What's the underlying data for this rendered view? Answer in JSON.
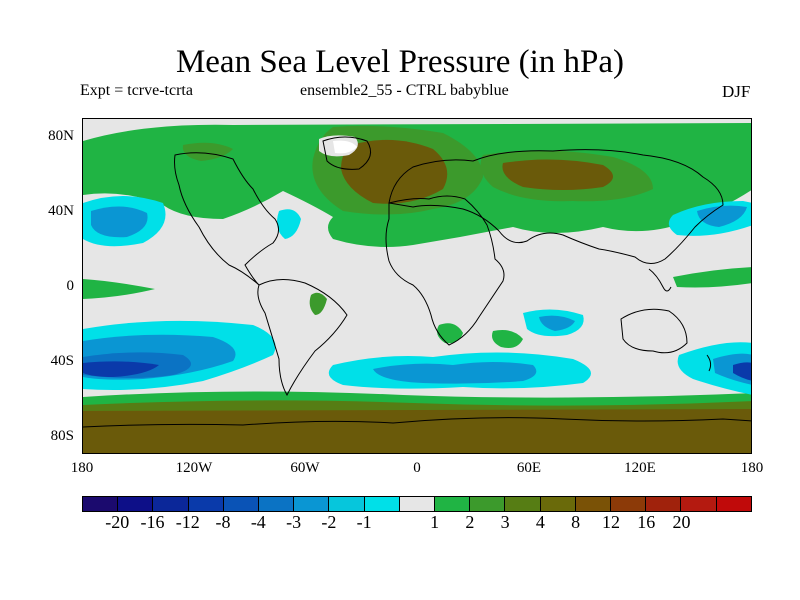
{
  "title": "Mean Sea Level Pressure (in hPa)",
  "subtitle_left": "Expt = tcrve-tcrta",
  "subtitle_center": "ensemble2_55 - CTRL babyblue",
  "subtitle_right": "DJF",
  "lat_labels": [
    "80N",
    "40N",
    "0",
    "40S",
    "80S"
  ],
  "lon_labels": [
    "180",
    "120W",
    "60W",
    "0",
    "60E",
    "120E",
    "180"
  ],
  "colorbar": {
    "colors": [
      "#1b0a6e",
      "#0d0f88",
      "#0b2799",
      "#0a3aaa",
      "#0a53b6",
      "#0b73c4",
      "#0a96d3",
      "#06c6dc",
      "#00e0e8",
      "#e6e6e6",
      "#20b444",
      "#3c9a2c",
      "#567d14",
      "#6a6a0a",
      "#7a5206",
      "#8c3a08",
      "#a0220c",
      "#b41a10",
      "#c00a0a"
    ],
    "labels": [
      "-20",
      "-16",
      "-12",
      "-8",
      "-4",
      "-3",
      "-2",
      "-1",
      "1",
      "2",
      "3",
      "4",
      "8",
      "12",
      "16",
      "20"
    ]
  },
  "colors": {
    "background": "#e6e6e6",
    "green_light": "#20b444",
    "green_mid": "#3c9a2c",
    "olive": "#567d14",
    "brown": "#6a5a0a",
    "brown_dark": "#7a5206",
    "cyan": "#00e0e8",
    "blue_light": "#0a96d3",
    "blue_mid": "#0b73c4",
    "blue_dark": "#0a3aaa"
  }
}
